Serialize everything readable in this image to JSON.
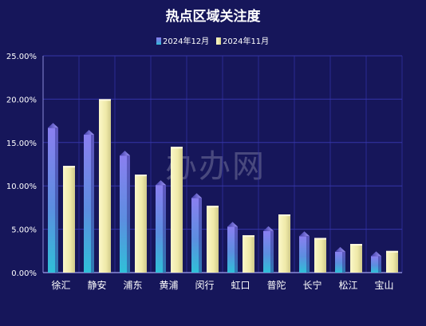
{
  "chart_data": {
    "type": "bar",
    "title": "热点区域关注度",
    "categories": [
      "徐汇",
      "静安",
      "浦东",
      "黄浦",
      "闵行",
      "虹口",
      "普陀",
      "长宁",
      "松江",
      "宝山"
    ],
    "series": [
      {
        "name": "2024年12月",
        "values": [
          16.7,
          15.9,
          13.5,
          10.1,
          8.6,
          5.3,
          4.8,
          4.2,
          2.4,
          1.9
        ],
        "color": "#7b72e6"
      },
      {
        "name": "2024年11月",
        "values": [
          12.3,
          20.0,
          11.3,
          14.5,
          7.7,
          4.3,
          6.7,
          4.0,
          3.3,
          2.5
        ],
        "color": "#f3efb0"
      }
    ],
    "yticks": [
      "0.00%",
      "5.00%",
      "10.00%",
      "15.00%",
      "20.00%",
      "25.00%"
    ],
    "ylim": [
      0,
      25
    ],
    "grid": true,
    "legend_position": "top-center",
    "watermark": "办办网",
    "colors": {
      "background": "#16165a",
      "grid": "#3535a8",
      "axis": "#8a8ad8",
      "text": "#ffffff"
    }
  }
}
